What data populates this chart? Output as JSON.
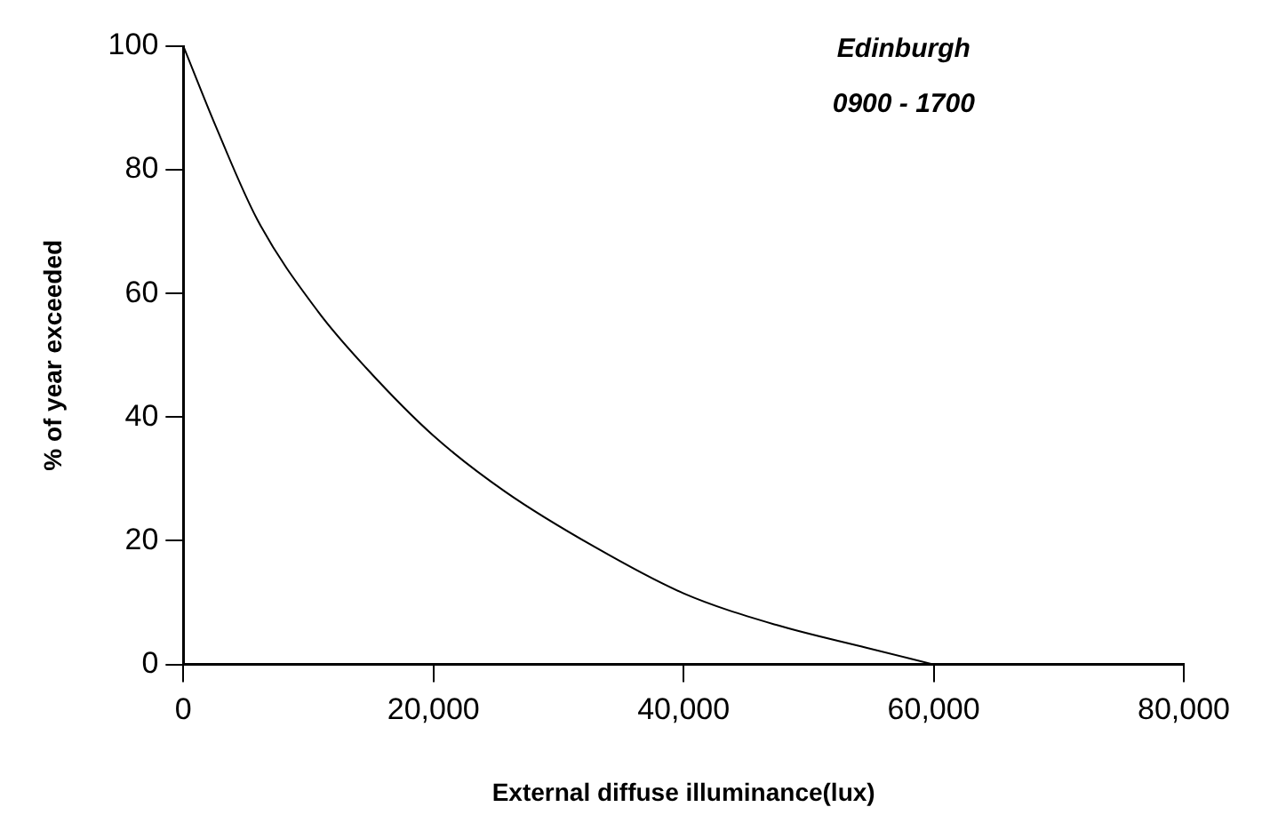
{
  "chart_data": {
    "type": "line",
    "xlabel": "External diffuse illuminance(lux)",
    "ylabel": "% of year exceeded",
    "annotations": [
      "Edinburgh",
      "0900 - 1700"
    ],
    "x": [
      0,
      2600,
      5900,
      10800,
      14600,
      20000,
      25700,
      32900,
      40000,
      47400,
      54600,
      60000
    ],
    "series": [
      {
        "color": "#000000",
        "values": [
          100,
          87,
          72,
          57,
          48,
          37,
          28,
          19,
          11.5,
          6.4,
          2.7,
          0
        ]
      }
    ],
    "xlim": [
      0,
      80000
    ],
    "xticks": [
      {
        "value": 0,
        "label": "0"
      },
      {
        "value": 20000,
        "label": "20,000"
      },
      {
        "value": 40000,
        "label": "40,000"
      },
      {
        "value": 60000,
        "label": "60,000"
      },
      {
        "value": 80000,
        "label": "80,000"
      }
    ],
    "ylim": [
      0,
      100
    ],
    "yticks": [
      0,
      20,
      40,
      60,
      80,
      100
    ],
    "grid": false,
    "legend": false,
    "marker": "none",
    "line_style": "solid"
  }
}
